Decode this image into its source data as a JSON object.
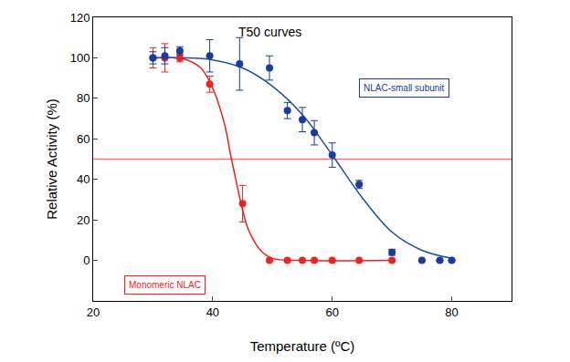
{
  "chart_data": {
    "type": "scatter",
    "title": "T50 curves",
    "x_label": "Temperature (ºC)",
    "y_label": "Relative Activity (%)",
    "xlim": [
      20,
      90
    ],
    "xticks": [
      20,
      40,
      60,
      80
    ],
    "ylim": [
      -20,
      120
    ],
    "yticks": [
      0,
      20,
      40,
      60,
      80,
      100,
      120
    ],
    "grid": false,
    "legend": "none",
    "series": [
      {
        "type": "line",
        "line_style": "solid",
        "color": "#ff7070",
        "x": [
          20,
          90
        ],
        "values": [
          50,
          50
        ]
      },
      {
        "type": "line",
        "line_style": "solid",
        "color": "#e8251f",
        "x": [
          30,
          35,
          38,
          40,
          42,
          43,
          44,
          45,
          46,
          48,
          50,
          55,
          70
        ],
        "values": [
          100,
          99.5,
          95,
          85,
          67,
          52,
          38,
          25,
          15,
          5,
          1,
          0,
          0
        ]
      },
      {
        "type": "line",
        "line_style": "solid",
        "color": "#1f4fa8",
        "x": [
          30,
          35,
          40,
          45,
          50,
          55,
          60,
          65,
          70,
          75,
          80
        ],
        "values": [
          100,
          100,
          99,
          95,
          86,
          72,
          52,
          31,
          14,
          5,
          1
        ]
      },
      {
        "name": "Monomeric NLAC",
        "type": "scatter",
        "marker": "circle",
        "color": "#e8251f",
        "x": [
          30,
          32,
          34.5,
          39.5,
          45,
          49.5,
          52.5,
          55,
          57,
          60,
          64.5,
          70
        ],
        "values": [
          100,
          100,
          100,
          87,
          28,
          0,
          0,
          0,
          0,
          0,
          0,
          0
        ],
        "errors": [
          5,
          7,
          2,
          4,
          9,
          null,
          null,
          null,
          null,
          null,
          null,
          null
        ]
      },
      {
        "name": "NLAC-small subunit",
        "type": "scatter",
        "marker": "circle",
        "color": "#1a3a9c",
        "x": [
          30,
          32,
          34.5,
          39.5,
          44.5,
          49.5,
          52.5,
          55,
          57,
          60,
          64.5,
          70,
          75,
          78,
          80
        ],
        "values": [
          100,
          101,
          103.5,
          101,
          97,
          95,
          74,
          69.5,
          63,
          52,
          37.5,
          4,
          0,
          0,
          0
        ],
        "errors": [
          3,
          4,
          2,
          8,
          13,
          6,
          4,
          6,
          6,
          6,
          2,
          1.5,
          null,
          null,
          null
        ]
      }
    ]
  }
}
